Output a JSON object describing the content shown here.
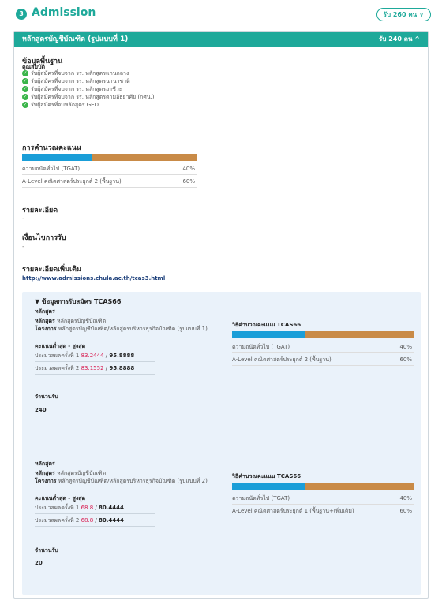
{
  "header": {
    "step_number": "3",
    "title": "Admission",
    "seats_label": "รับ 260 คน",
    "seats_chevron": "∨"
  },
  "program": {
    "name": "หลักสูตรบัญชีบัณฑิต (รูปแบบที่ 1)",
    "seats": "รับ 240 คน",
    "chevron": "^"
  },
  "basic": {
    "title": "ข้อมูลพื้นฐาน",
    "qualifications_label": "คุณสมบัติ",
    "qualifications": [
      "รับผู้สมัครที่จบจาก รร. หลักสูตรแกนกลาง",
      "รับผู้สมัครที่จบจาก รร. หลักสูตรนานาชาติ",
      "รับผู้สมัครที่จบจาก รร. หลักสูตรอาชีวะ",
      "รับผู้สมัครที่จบจาก รร. หลักสูตรตามอัธยาศัย (กศน.)",
      "รับผู้สมัครที่จบหลักสูตร GED"
    ]
  },
  "scoring": {
    "title": "การคำนวณคะแนน",
    "weights": [
      0.4,
      0.6
    ],
    "rows": [
      {
        "label": "ความถนัดทั่วไป (TGAT)",
        "pct": "40%"
      },
      {
        "label": "A-Level คณิตศาสตร์ประยุกต์ 2 (พื้นฐาน)",
        "pct": "60%"
      }
    ]
  },
  "details": {
    "title": "รายละเอียด",
    "value": "-"
  },
  "conditions": {
    "title": "เงื่อนไขการรับ",
    "value": "-"
  },
  "more": {
    "title": "รายละเอียดเพิ่มเติม",
    "link": "http://www.admissions.chula.ac.th/tcas3.html"
  },
  "tcas": {
    "title": "▼  ข้อมูลการรับสมัคร TCAS66",
    "blocks": [
      {
        "curriculum_label": "หลักสูตร",
        "curriculum_key": "หลักสูตร",
        "curriculum_value": "หลักสูตรบัญชีบัณฑิต",
        "project_key": "โครงการ",
        "project_value": "หลักสูตรบัญชีบัณฑิต/หลักสูตรบริหารธุรกิจบัณฑิต (รูปแบบที่ 1)",
        "minmax_label": "คะแนนต่ำสุด - สูงสุด",
        "round1_prefix": "ประมวลผลครั้งที่ 1 ",
        "round1_min": "83.2444",
        "round1_max": "95.8888",
        "round2_prefix": "ประมวลผลครั้งที่ 2 ",
        "round2_min": "83.1552",
        "round2_max": "95.8888",
        "seats_label": "จำนวนรับ",
        "seats_value": "240",
        "score_title": "วิธีคำนวณคะแนน TCAS66",
        "weights": [
          0.4,
          0.6
        ],
        "rows": [
          {
            "label": "ความถนัดทั่วไป (TGAT)",
            "pct": "40%"
          },
          {
            "label": "A-Level คณิตศาสตร์ประยุกต์ 2 (พื้นฐาน)",
            "pct": "60%"
          }
        ]
      },
      {
        "curriculum_label": "หลักสูตร",
        "curriculum_key": "หลักสูตร",
        "curriculum_value": "หลักสูตรบัญชีบัณฑิต",
        "project_key": "โครงการ",
        "project_value": "หลักสูตรบัญชีบัณฑิต/หลักสูตรบริหารธุรกิจบัณฑิต (รูปแบบที่ 2)",
        "minmax_label": "คะแนนต่ำสุด - สูงสุด",
        "round1_prefix": "ประมวลผลครั้งที่ 1 ",
        "round1_min": "68.8",
        "round1_max": "80.4444",
        "round2_prefix": "ประมวลผลครั้งที่ 2 ",
        "round2_min": "68.8",
        "round2_max": "80.4444",
        "seats_label": "จำนวนรับ",
        "seats_value": "20",
        "score_title": "วิธีคำนวณคะแนน TCAS66",
        "weights": [
          0.4,
          0.6
        ],
        "rows": [
          {
            "label": "ความถนัดทั่วไป (TGAT)",
            "pct": "40%"
          },
          {
            "label": "A-Level คณิตศาสตร์ประยุกต์ 1 (พื้นฐาน+เพิ่มเติม)",
            "pct": "60%"
          }
        ]
      }
    ]
  },
  "colors": {
    "accent": "#1ea99a",
    "bar_blue": "#1a9ed8",
    "bar_orange": "#c98b47",
    "highlight": "#d81b4f"
  }
}
